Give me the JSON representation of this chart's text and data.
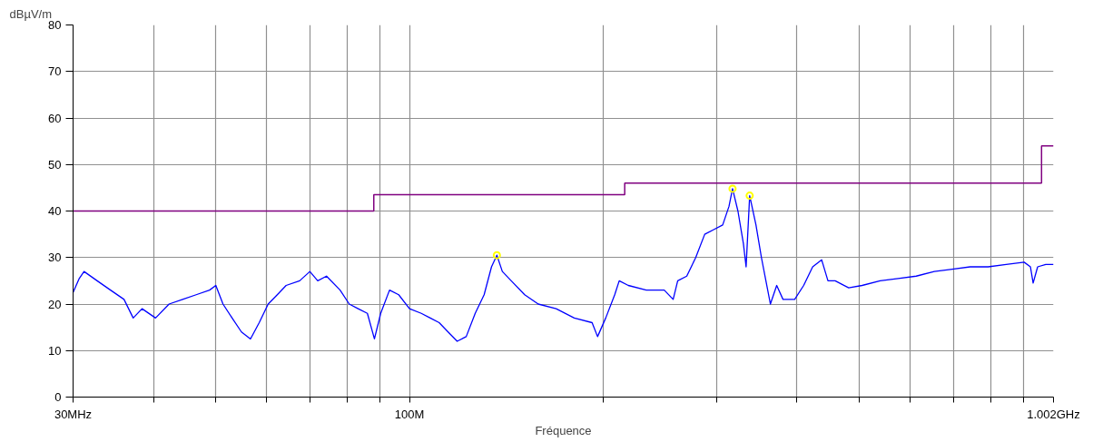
{
  "chart_data": {
    "type": "line",
    "xlabel": "Fréquence",
    "ylabel": "dBµV/m",
    "log": "x",
    "grid": true,
    "xlim": [
      30,
      1002
    ],
    "ylim": [
      0,
      80
    ],
    "xticks": [
      {
        "value": 30,
        "label": "30MHz"
      },
      {
        "value": 40,
        "label": null
      },
      {
        "value": 50,
        "label": null
      },
      {
        "value": 60,
        "label": null
      },
      {
        "value": 70,
        "label": null
      },
      {
        "value": 80,
        "label": null
      },
      {
        "value": 90,
        "label": null
      },
      {
        "value": 100,
        "label": "100M"
      },
      {
        "value": 200,
        "label": null
      },
      {
        "value": 300,
        "label": null
      },
      {
        "value": 400,
        "label": null
      },
      {
        "value": 500,
        "label": null
      },
      {
        "value": 600,
        "label": null
      },
      {
        "value": 700,
        "label": null
      },
      {
        "value": 800,
        "label": null
      },
      {
        "value": 900,
        "label": null
      },
      {
        "value": 1002,
        "label": "1.002GHz"
      }
    ],
    "yticks": [
      0,
      10,
      20,
      30,
      40,
      50,
      60,
      70,
      80
    ],
    "series": [
      {
        "color": "#0000ff",
        "x": [
          30.0,
          30.67,
          31.2,
          32.7,
          34.3,
          36.0,
          37.2,
          38.4,
          40.3,
          42.3,
          44.4,
          46.6,
          48.9,
          50.0,
          51.3,
          53.0,
          54.8,
          56.6,
          58.4,
          60.3,
          62.3,
          64.3,
          67.5,
          70.0,
          72.0,
          74.3,
          78.0,
          80.6,
          83.2,
          86.0,
          88.2,
          90.2,
          93.1,
          96.2,
          100,
          104.3,
          107.7,
          111.2,
          114.8,
          118.6,
          122.5,
          126.5,
          130.6,
          134.1,
          136.7,
          139.4,
          143.9,
          151.0,
          158.5,
          169.0,
          180.3,
          192.2,
          196.0,
          201.8,
          208.4,
          211.8,
          218.8,
          233.3,
          248.8,
          256.9,
          261.1,
          269.7,
          278.5,
          287.6,
          297.0,
          306.7,
          313.7,
          317.7,
          323.9,
          330.3,
          333.5,
          337.8,
          345.5,
          352.3,
          358.0,
          363.8,
          372.1,
          380.6,
          396.8,
          409.8,
          423.2,
          437.1,
          447.0,
          458.7,
          481.4,
          505.2,
          538.8,
          574.6,
          613.0,
          654.0,
          697.3,
          743.5,
          793.0,
          845.9,
          902.0,
          922.6,
          931.5,
          946.7,
          974.5,
          1002
        ],
        "values": [
          22.5,
          25.5,
          27,
          25,
          23,
          21,
          17,
          19,
          17,
          20,
          21,
          22,
          23,
          24,
          20,
          17,
          14,
          12.5,
          16,
          20,
          22,
          24,
          25,
          27,
          25,
          26,
          23,
          20,
          19,
          18,
          12.5,
          18,
          23,
          22,
          19,
          18,
          17,
          16,
          14,
          12,
          13,
          18,
          22,
          28,
          30.5,
          27,
          25,
          22,
          20,
          19,
          17,
          16,
          13,
          17,
          22,
          25,
          24,
          23,
          23,
          21,
          25,
          26,
          30,
          35,
          36,
          37,
          41,
          44.8,
          40,
          33,
          28,
          43.3,
          37,
          30,
          25,
          20,
          24,
          21,
          21,
          24,
          28,
          29.5,
          25,
          25,
          23.5,
          24,
          25,
          25.5,
          26,
          27,
          27.5,
          28,
          28,
          28.5,
          29,
          28,
          24.5,
          28,
          28.5,
          28.5
        ]
      },
      {
        "type": "step",
        "color": "#800080",
        "x": [
          30,
          88,
          216,
          960,
          1002
        ],
        "values": [
          40,
          43.5,
          46,
          54,
          54
        ]
      },
      {
        "type": "scatter",
        "color": "#ffff00",
        "marker": "circle",
        "x": [
          136.7,
          317.7,
          337.8
        ],
        "values": [
          30.5,
          44.8,
          43.3
        ]
      }
    ]
  }
}
